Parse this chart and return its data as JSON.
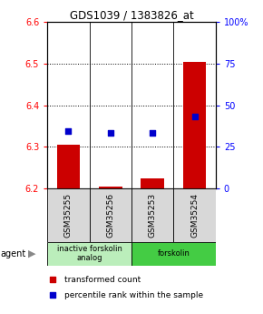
{
  "title": "GDS1039 / 1383826_at",
  "samples": [
    "GSM35255",
    "GSM35256",
    "GSM35253",
    "GSM35254"
  ],
  "bar_values": [
    6.305,
    6.205,
    6.223,
    6.505
  ],
  "bar_base": 6.2,
  "percentile_values": [
    6.337,
    6.333,
    6.333,
    6.373
  ],
  "ylim_left": [
    6.2,
    6.6
  ],
  "ylim_right": [
    0,
    100
  ],
  "yticks_left": [
    6.2,
    6.3,
    6.4,
    6.5,
    6.6
  ],
  "yticks_right": [
    0,
    25,
    50,
    75,
    100
  ],
  "ytick_labels_right": [
    "0",
    "25",
    "50",
    "75",
    "100%"
  ],
  "bar_color": "#cc0000",
  "percentile_color": "#0000cc",
  "agent_groups": [
    {
      "label": "inactive forskolin\nanalog",
      "color": "#bbeebb",
      "span": [
        0,
        2
      ]
    },
    {
      "label": "forskolin",
      "color": "#44cc44",
      "span": [
        2,
        4
      ]
    }
  ],
  "legend_red_label": "transformed count",
  "legend_blue_label": "percentile rank within the sample",
  "agent_label": "agent",
  "bar_width": 0.55
}
